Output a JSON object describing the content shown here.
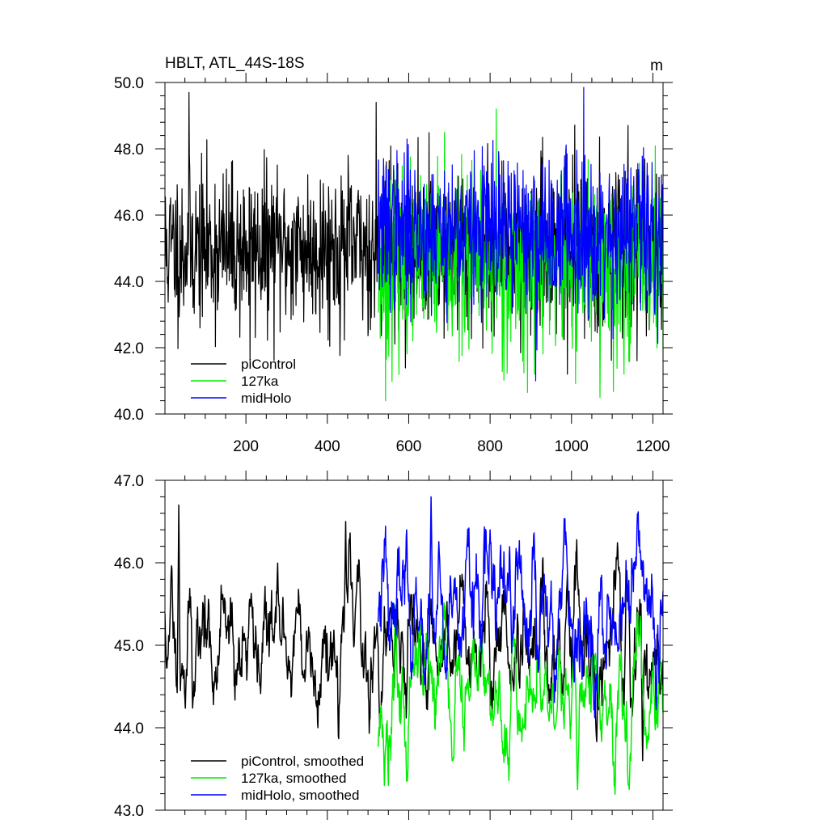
{
  "chart_data": [
    {
      "type": "line",
      "title": "HBLT, ATL_44S-18S",
      "units": "m",
      "xlim": [
        1,
        1225
      ],
      "ylim": [
        40.0,
        50.0
      ],
      "xticks": [
        200,
        400,
        600,
        800,
        1000,
        1200
      ],
      "xtick_labels": [
        "200",
        "400",
        "600",
        "800",
        "1000",
        "1200"
      ],
      "yticks": [
        40.0,
        42.0,
        44.0,
        46.0,
        48.0,
        50.0
      ],
      "ytick_labels": [
        "40.0",
        "42.0",
        "44.0",
        "46.0",
        "48.0",
        "50.0"
      ],
      "legend": "bottom-left",
      "series": [
        {
          "name": "piControl",
          "color": "#000000",
          "x_range": [
            1,
            1225
          ],
          "mean": 45.0,
          "sd": 1.2,
          "smooth": 1,
          "seed": 11,
          "extremes": [
            [
              60,
              49.7
            ],
            [
              210,
              41.6
            ],
            [
              520,
              49.4
            ],
            [
              990,
              41.2
            ]
          ]
        },
        {
          "name": "127ka",
          "color": "#00ee00",
          "x_range": [
            525,
            1225
          ],
          "mean": 44.5,
          "sd": 1.3,
          "smooth": 1,
          "seed": 23,
          "extremes": [
            [
              543,
              40.4
            ],
            [
              815,
              49.2
            ],
            [
              1070,
              40.5
            ]
          ]
        },
        {
          "name": "midHolo",
          "color": "#0000ff",
          "x_range": [
            525,
            1225
          ],
          "mean": 45.5,
          "sd": 1.15,
          "smooth": 1,
          "seed": 37,
          "extremes": [
            [
              1030,
              49.85
            ],
            [
              912,
              41.0
            ]
          ]
        }
      ]
    },
    {
      "type": "line",
      "ylim": [
        43.0,
        47.0
      ],
      "xlim": [
        1,
        1225
      ],
      "yticks": [
        43.0,
        44.0,
        45.0,
        46.0,
        47.0
      ],
      "ytick_labels": [
        "43.0",
        "44.0",
        "45.0",
        "46.0",
        "47.0"
      ],
      "xticks": [
        200,
        400,
        600,
        800,
        1000,
        1200
      ],
      "legend": "bottom-left",
      "series": [
        {
          "name": "piControl, smoothed",
          "color": "#000000",
          "x_range": [
            1,
            1225
          ],
          "mean": 45.0,
          "sd": 0.42,
          "smooth": 5,
          "seed": 11,
          "extremes": [
            [
              35,
              46.7
            ],
            [
              445,
              46.5
            ],
            [
              1175,
              43.6
            ]
          ]
        },
        {
          "name": "127ka, smoothed",
          "color": "#00ee00",
          "x_range": [
            525,
            1225
          ],
          "mean": 44.4,
          "sd": 0.42,
          "smooth": 5,
          "seed": 23,
          "extremes": [
            [
              540,
              43.3
            ],
            [
              1015,
              43.25
            ],
            [
              1140,
              43.3
            ]
          ]
        },
        {
          "name": "midHolo, smoothed",
          "color": "#0000ff",
          "x_range": [
            525,
            1225
          ],
          "mean": 45.45,
          "sd": 0.45,
          "smooth": 5,
          "seed": 37,
          "extremes": [
            [
              655,
              46.8
            ],
            [
              595,
              46.4
            ],
            [
              800,
              46.4
            ]
          ]
        }
      ]
    }
  ]
}
